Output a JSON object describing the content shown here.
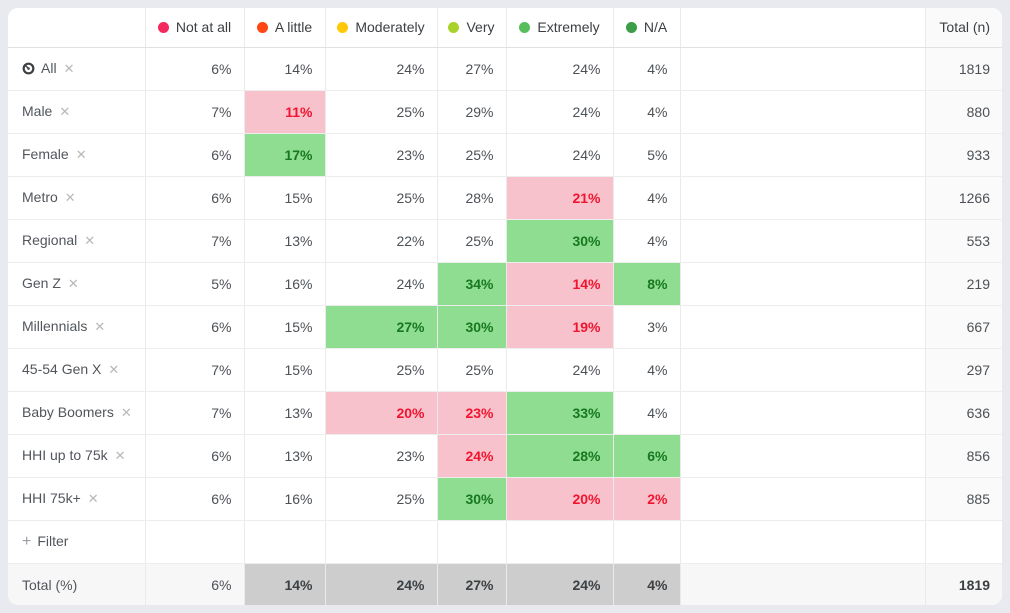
{
  "table": {
    "columns": [
      {
        "label": "Not at all",
        "dot_color": "#f5285d"
      },
      {
        "label": "A little",
        "dot_color": "#ff4613"
      },
      {
        "label": "Moderately",
        "dot_color": "#ffc90a"
      },
      {
        "label": "Very",
        "dot_color": "#a9d22b"
      },
      {
        "label": "Extremely",
        "dot_color": "#56bf5c"
      },
      {
        "label": "N/A",
        "dot_color": "#3b9e47"
      }
    ],
    "total_header": "Total (n)",
    "rows": [
      {
        "label": "All",
        "has_icon": true,
        "values": [
          "6%",
          "14%",
          "24%",
          "27%",
          "24%",
          "4%"
        ],
        "highlights": [
          null,
          null,
          null,
          null,
          null,
          null
        ],
        "total": "1819"
      },
      {
        "label": "Male",
        "has_icon": false,
        "values": [
          "7%",
          "11%",
          "25%",
          "29%",
          "24%",
          "4%"
        ],
        "highlights": [
          null,
          "low",
          null,
          null,
          null,
          null
        ],
        "total": "880"
      },
      {
        "label": "Female",
        "has_icon": false,
        "values": [
          "6%",
          "17%",
          "23%",
          "25%",
          "24%",
          "5%"
        ],
        "highlights": [
          null,
          "high",
          null,
          null,
          null,
          null
        ],
        "total": "933"
      },
      {
        "label": "Metro",
        "has_icon": false,
        "values": [
          "6%",
          "15%",
          "25%",
          "28%",
          "21%",
          "4%"
        ],
        "highlights": [
          null,
          null,
          null,
          null,
          "low",
          null
        ],
        "total": "1266"
      },
      {
        "label": "Regional",
        "has_icon": false,
        "values": [
          "7%",
          "13%",
          "22%",
          "25%",
          "30%",
          "4%"
        ],
        "highlights": [
          null,
          null,
          null,
          null,
          "high",
          null
        ],
        "total": "553"
      },
      {
        "label": "Gen Z",
        "has_icon": false,
        "values": [
          "5%",
          "16%",
          "24%",
          "34%",
          "14%",
          "8%"
        ],
        "highlights": [
          null,
          null,
          null,
          "high",
          "low",
          "high"
        ],
        "total": "219"
      },
      {
        "label": "Millennials",
        "has_icon": false,
        "values": [
          "6%",
          "15%",
          "27%",
          "30%",
          "19%",
          "3%"
        ],
        "highlights": [
          null,
          null,
          "high",
          "high",
          "low",
          null
        ],
        "total": "667"
      },
      {
        "label": "45-54 Gen X",
        "has_icon": false,
        "values": [
          "7%",
          "15%",
          "25%",
          "25%",
          "24%",
          "4%"
        ],
        "highlights": [
          null,
          null,
          null,
          null,
          null,
          null
        ],
        "total": "297"
      },
      {
        "label": "Baby Boomers",
        "has_icon": false,
        "values": [
          "7%",
          "13%",
          "20%",
          "23%",
          "33%",
          "4%"
        ],
        "highlights": [
          null,
          null,
          "low",
          "low",
          "high",
          null
        ],
        "total": "636"
      },
      {
        "label": "HHI up to 75k",
        "has_icon": false,
        "values": [
          "6%",
          "13%",
          "23%",
          "24%",
          "28%",
          "6%"
        ],
        "highlights": [
          null,
          null,
          null,
          "low",
          "high",
          "high"
        ],
        "total": "856"
      },
      {
        "label": "HHI 75k+",
        "has_icon": false,
        "values": [
          "6%",
          "16%",
          "25%",
          "30%",
          "20%",
          "2%"
        ],
        "highlights": [
          null,
          null,
          null,
          "high",
          "low",
          "low"
        ],
        "total": "885"
      }
    ],
    "filter_row": {
      "label": "Filter"
    },
    "total_row": {
      "label": "Total (%)",
      "values": [
        "6%",
        "14%",
        "24%",
        "27%",
        "24%",
        "4%"
      ],
      "gray": [
        false,
        true,
        true,
        true,
        true,
        true
      ],
      "total": "1819"
    }
  },
  "icons": {
    "close": "✕",
    "plus": "+"
  },
  "colors": {
    "highlight_low_bg": "#f8c2cc",
    "highlight_low_text": "#f1142f",
    "highlight_high_bg": "#8edd90",
    "highlight_high_text": "#17781f",
    "total_gray_bg": "#cdcdcd",
    "close_icon": "#b8b8b8"
  }
}
